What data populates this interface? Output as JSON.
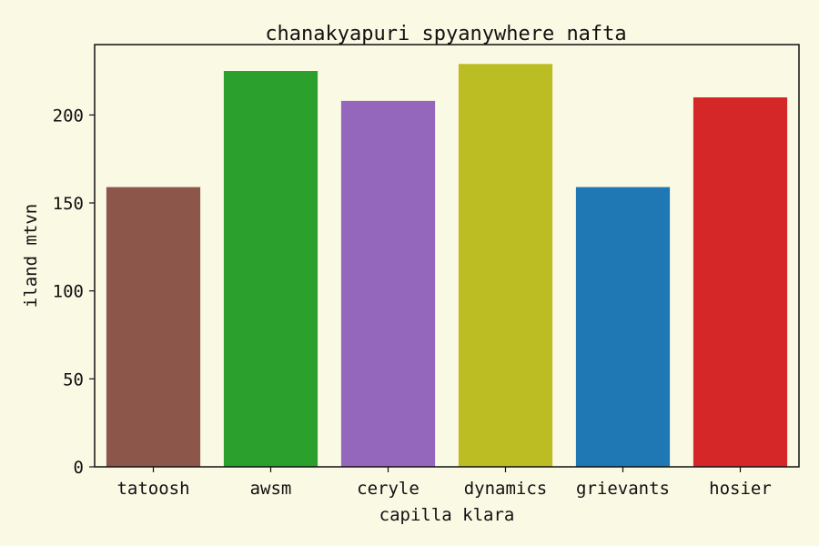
{
  "chart_data": {
    "type": "bar",
    "title": "chanakyapuri spyanywhere nafta",
    "xlabel": "capilla klara",
    "ylabel": "iland mtvn",
    "categories": [
      "tatoosh",
      "awsm",
      "ceryle",
      "dynamics",
      "grievants",
      "hosier"
    ],
    "values": [
      159,
      225,
      208,
      229,
      159,
      210
    ],
    "colors": [
      "#8c564b",
      "#2ca02c",
      "#9467bd",
      "#bcbd22",
      "#1f77b4",
      "#d62728"
    ],
    "yticks": [
      0,
      50,
      100,
      150,
      200
    ],
    "ylim": [
      0,
      240
    ],
    "grid": false,
    "legend": "none"
  }
}
